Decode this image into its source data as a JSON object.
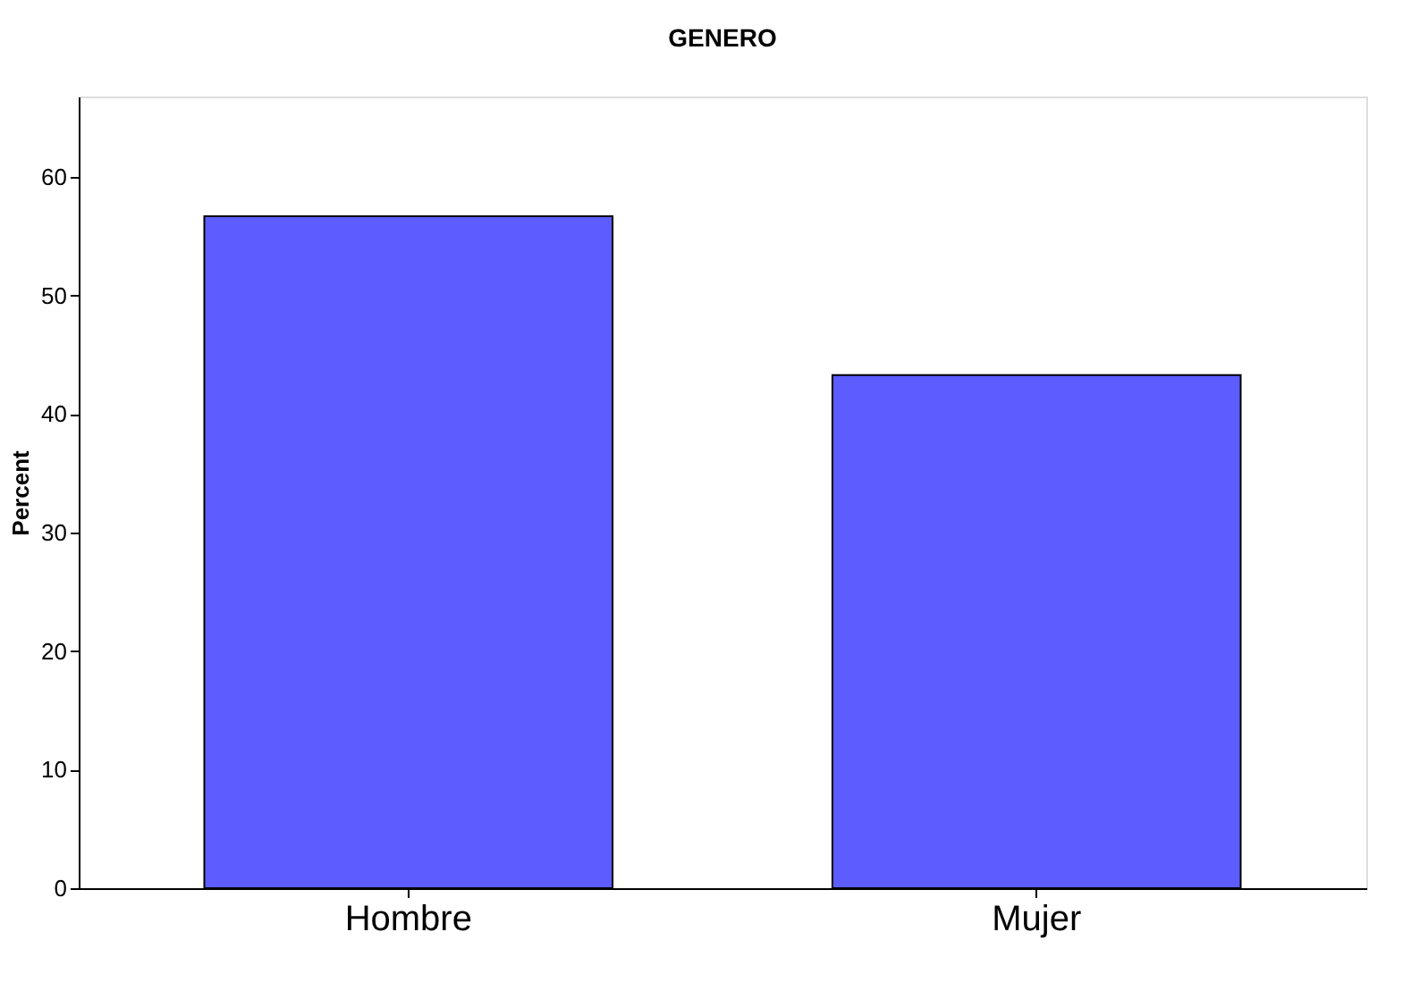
{
  "chart_data": {
    "type": "bar",
    "title": "GENERO",
    "ylabel": "Percent",
    "categories": [
      "Hombre",
      "Mujer"
    ],
    "values": [
      56.7,
      43.3
    ],
    "color": "#5c5cff",
    "ylim": [
      0,
      66.8
    ],
    "yticks": [
      0,
      10,
      20,
      30,
      40,
      50,
      60
    ],
    "grid": false
  }
}
